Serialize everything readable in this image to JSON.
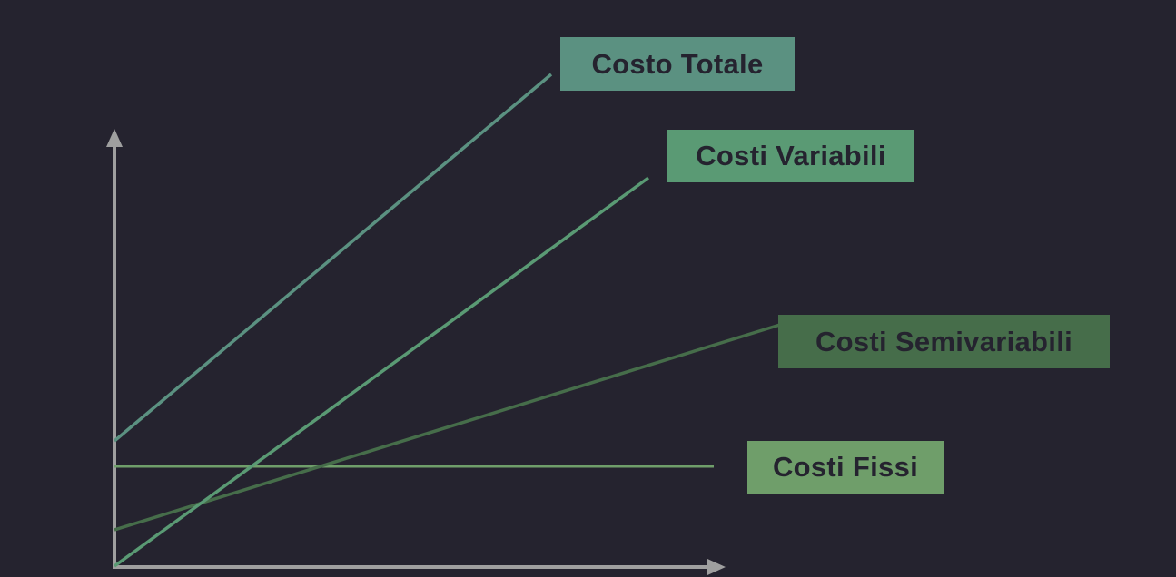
{
  "background": "#25232f",
  "axis_color": "#9f9f9f",
  "labels": {
    "total": "Costo Totale",
    "variable": "Costi Variabili",
    "semivariable": "Costi Semivariabili",
    "fixed": "Costi Fissi"
  },
  "colors": {
    "total": "#5b9181",
    "variable": "#5a9a74",
    "semivariable": "#466d4a",
    "fixed": "#6f9e6a",
    "text": "#25232f"
  }
}
